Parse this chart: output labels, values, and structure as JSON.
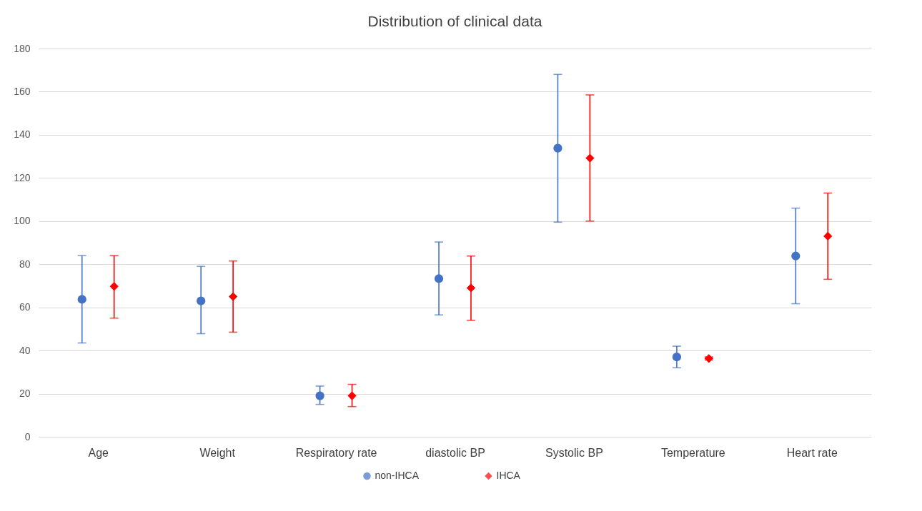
{
  "chart_data": {
    "type": "scatter",
    "title": "Distribution of clinical data",
    "categories": [
      "Age",
      "Weight",
      "Respiratory rate",
      "diastolic BP",
      "Systolic BP",
      "Temperature",
      "Heart rate"
    ],
    "series": [
      {
        "name": "non-IHCA",
        "color": "#4472c4",
        "marker": "circle",
        "values": [
          63.7,
          63,
          19,
          73.3,
          133.8,
          37,
          83.8
        ],
        "errors": [
          [
            43.5,
            84
          ],
          [
            47.8,
            79
          ],
          [
            15,
            23.5
          ],
          [
            56.5,
            90.3
          ],
          [
            99.5,
            168
          ],
          [
            32,
            42
          ],
          [
            61.7,
            106
          ]
        ]
      },
      {
        "name": "IHCA",
        "color": "#ff0000",
        "marker": "diamond",
        "values": [
          69.7,
          65,
          19,
          69,
          129.2,
          36.3,
          93
        ],
        "errors": [
          [
            55,
            84
          ],
          [
            48.5,
            81.5
          ],
          [
            14,
            24.3
          ],
          [
            54,
            83.8
          ],
          [
            100,
            158.5
          ],
          [
            35.6,
            37
          ],
          [
            73,
            113
          ]
        ]
      }
    ],
    "ylim": [
      0,
      180
    ],
    "yticks": [
      0,
      20,
      40,
      60,
      80,
      100,
      120,
      140,
      160,
      180
    ],
    "grid": "y",
    "legend": "bottom"
  }
}
